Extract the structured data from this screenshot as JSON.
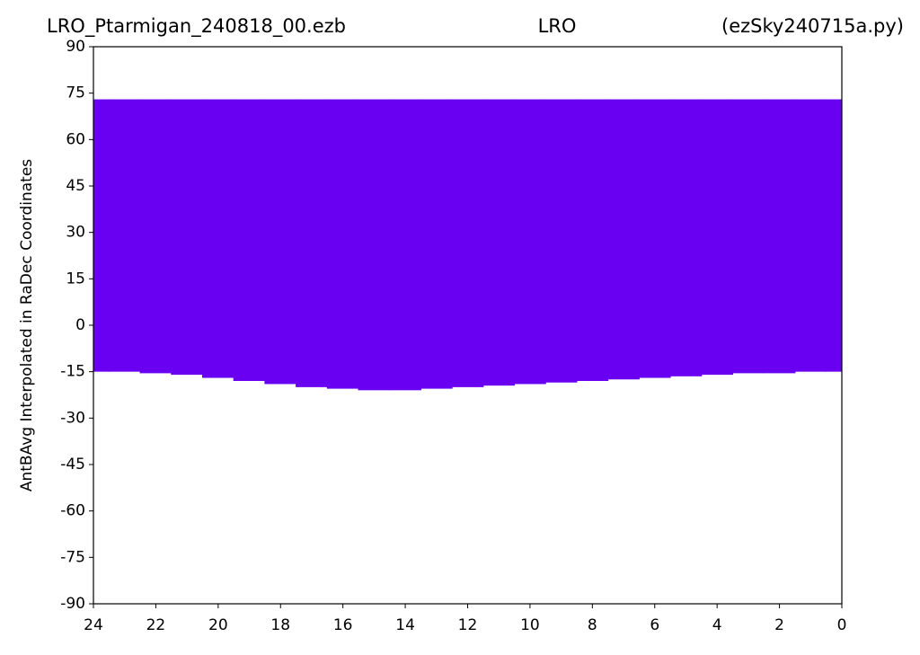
{
  "chart_data": {
    "type": "range-area",
    "title_parts": [
      "LRO_Ptarmigan_240818_00.ezb",
      "LRO",
      "(ezSky240715a.py)"
    ],
    "ylabel": "AntBAvg Interpolated in RaDec Coordinates",
    "x": [
      24,
      23,
      22,
      21,
      20,
      19,
      18,
      17,
      16,
      15,
      14,
      13,
      12,
      11,
      10,
      9,
      8,
      7,
      6,
      5,
      4,
      3,
      2,
      1,
      0
    ],
    "upper": [
      73,
      73,
      73,
      73,
      73,
      73,
      73,
      73,
      73,
      73,
      73,
      73,
      73,
      73,
      73,
      73,
      73,
      73,
      73,
      73,
      73,
      73,
      73,
      73,
      73
    ],
    "lower": [
      -15,
      -15,
      -15.5,
      -16,
      -17,
      -18,
      -19,
      -20,
      -20.5,
      -21,
      -21,
      -20.5,
      -20,
      -19.5,
      -19,
      -18.5,
      -18,
      -17.5,
      -17,
      -16.5,
      -16,
      -15.5,
      -15.5,
      -15,
      -15
    ],
    "color": "#6a00f2",
    "xlim": [
      24,
      0
    ],
    "xticks": [
      24,
      22,
      20,
      18,
      16,
      14,
      12,
      10,
      8,
      6,
      4,
      2,
      0
    ],
    "ylim": [
      -90,
      90
    ],
    "yticks": [
      90,
      75,
      60,
      45,
      30,
      15,
      0,
      -15,
      -30,
      -45,
      -60,
      -75,
      -90
    ]
  }
}
